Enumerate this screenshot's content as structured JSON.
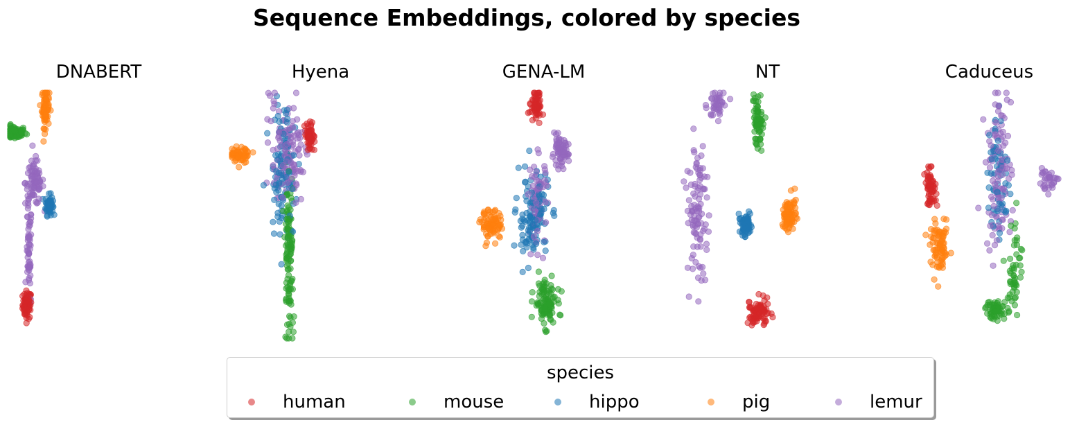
{
  "title": "Sequence Embeddings, colored by species",
  "legend": {
    "title": "species",
    "placement": "bottom-center"
  },
  "colors": {
    "human": "#d62728",
    "mouse": "#2ca02c",
    "hippo": "#1f77b4",
    "pig": "#ff7f0e",
    "lemur": "#9467bd"
  },
  "chart_data": [
    {
      "type": "scatter",
      "title": "DNABERT",
      "axes_visible": false,
      "grid": false,
      "series": [
        {
          "name": "human",
          "color": "#d62728",
          "clusters": [
            {
              "center": [
                1.1,
                1.4
              ],
              "spread": [
                0.12,
                0.28
              ],
              "count": 70
            }
          ]
        },
        {
          "name": "mouse",
          "color": "#2ca02c",
          "clusters": [
            {
              "center": [
                0.4,
                8.3
              ],
              "spread": [
                0.32,
                0.13
              ],
              "count": 90
            }
          ]
        },
        {
          "name": "hippo",
          "color": "#1f77b4",
          "clusters": [
            {
              "center": [
                2.3,
                5.4
              ],
              "spread": [
                0.1,
                0.2
              ],
              "count": 60
            }
          ]
        },
        {
          "name": "pig",
          "color": "#ff7f0e",
          "clusters": [
            {
              "center": [
                2.1,
                9.3
              ],
              "spread": [
                0.1,
                0.4
              ],
              "count": 70
            }
          ]
        },
        {
          "name": "lemur",
          "color": "#9467bd",
          "clusters": [
            {
              "center": [
                1.5,
                6.3
              ],
              "spread": [
                0.25,
                0.45
              ],
              "count": 80
            },
            {
              "center": [
                1.2,
                3.3
              ],
              "spread": [
                0.07,
                1.1
              ],
              "count": 60
            }
          ]
        }
      ]
    },
    {
      "type": "scatter",
      "title": "Hyena",
      "axes_visible": false,
      "grid": false,
      "series": [
        {
          "name": "human",
          "color": "#d62728",
          "clusters": [
            {
              "center": [
                4.4,
                8.1
              ],
              "spread": [
                0.13,
                0.25
              ],
              "count": 60
            }
          ]
        },
        {
          "name": "mouse",
          "color": "#2ca02c",
          "clusters": [
            {
              "center": [
                3.3,
                3.3
              ],
              "spread": [
                0.12,
                1.5
              ],
              "count": 120
            }
          ]
        },
        {
          "name": "hippo",
          "color": "#1f77b4",
          "clusters": [
            {
              "center": [
                3.0,
                6.7
              ],
              "spread": [
                0.4,
                1.3
              ],
              "count": 110
            }
          ]
        },
        {
          "name": "pig",
          "color": "#ff7f0e",
          "clusters": [
            {
              "center": [
                0.6,
                7.4
              ],
              "spread": [
                0.3,
                0.15
              ],
              "count": 60
            }
          ]
        },
        {
          "name": "lemur",
          "color": "#9467bd",
          "clusters": [
            {
              "center": [
                3.2,
                7.5
              ],
              "spread": [
                0.45,
                1.1
              ],
              "count": 120
            }
          ]
        }
      ]
    },
    {
      "type": "scatter",
      "title": "GENA-LM",
      "axes_visible": false,
      "grid": false,
      "series": [
        {
          "name": "human",
          "color": "#d62728",
          "clusters": [
            {
              "center": [
                4.6,
                9.4
              ],
              "spread": [
                0.15,
                0.3
              ],
              "count": 60
            }
          ]
        },
        {
          "name": "mouse",
          "color": "#2ca02c",
          "clusters": [
            {
              "center": [
                5.1,
                1.5
              ],
              "spread": [
                0.3,
                0.45
              ],
              "count": 110
            }
          ]
        },
        {
          "name": "hippo",
          "color": "#1f77b4",
          "clusters": [
            {
              "center": [
                4.4,
                4.9
              ],
              "spread": [
                0.45,
                0.9
              ],
              "count": 120
            }
          ]
        },
        {
          "name": "pig",
          "color": "#ff7f0e",
          "clusters": [
            {
              "center": [
                2.2,
                4.6
              ],
              "spread": [
                0.3,
                0.28
              ],
              "count": 80
            }
          ]
        },
        {
          "name": "lemur",
          "color": "#9467bd",
          "clusters": [
            {
              "center": [
                5.9,
                7.5
              ],
              "spread": [
                0.22,
                0.28
              ],
              "count": 70
            },
            {
              "center": [
                4.7,
                5.6
              ],
              "spread": [
                0.25,
                0.9
              ],
              "count": 70
            }
          ]
        }
      ]
    },
    {
      "type": "scatter",
      "title": "NT",
      "axes_visible": false,
      "grid": false,
      "series": [
        {
          "name": "human",
          "color": "#d62728",
          "clusters": [
            {
              "center": [
                4.5,
                1.1
              ],
              "spread": [
                0.3,
                0.28
              ],
              "count": 80
            }
          ]
        },
        {
          "name": "mouse",
          "color": "#2ca02c",
          "clusters": [
            {
              "center": [
                4.5,
                8.7
              ],
              "spread": [
                0.15,
                0.75
              ],
              "count": 70
            }
          ]
        },
        {
          "name": "hippo",
          "color": "#1f77b4",
          "clusters": [
            {
              "center": [
                3.8,
                4.6
              ],
              "spread": [
                0.18,
                0.18
              ],
              "count": 70
            }
          ]
        },
        {
          "name": "pig",
          "color": "#ff7f0e",
          "clusters": [
            {
              "center": [
                6.2,
                5.0
              ],
              "spread": [
                0.18,
                0.4
              ],
              "count": 80
            }
          ]
        },
        {
          "name": "lemur",
          "color": "#9467bd",
          "clusters": [
            {
              "center": [
                2.2,
                9.4
              ],
              "spread": [
                0.2,
                0.3
              ],
              "count": 40
            },
            {
              "center": [
                1.2,
                5.2
              ],
              "spread": [
                0.3,
                1.3
              ],
              "count": 100
            }
          ]
        }
      ]
    },
    {
      "type": "scatter",
      "title": "Caduceus",
      "axes_visible": false,
      "grid": false,
      "series": [
        {
          "name": "human",
          "color": "#d62728",
          "clusters": [
            {
              "center": [
                1.8,
                6.1
              ],
              "spread": [
                0.15,
                0.35
              ],
              "count": 60
            }
          ]
        },
        {
          "name": "mouse",
          "color": "#2ca02c",
          "clusters": [
            {
              "center": [
                5.4,
                1.2
              ],
              "spread": [
                0.3,
                0.2
              ],
              "count": 60
            },
            {
              "center": [
                6.4,
                2.9
              ],
              "spread": [
                0.2,
                1.0
              ],
              "count": 50
            }
          ]
        },
        {
          "name": "hippo",
          "color": "#1f77b4",
          "clusters": [
            {
              "center": [
                5.5,
                6.6
              ],
              "spread": [
                0.3,
                1.3
              ],
              "count": 60
            }
          ]
        },
        {
          "name": "pig",
          "color": "#ff7f0e",
          "clusters": [
            {
              "center": [
                2.3,
                3.6
              ],
              "spread": [
                0.25,
                0.5
              ],
              "count": 80
            }
          ]
        },
        {
          "name": "lemur",
          "color": "#9467bd",
          "clusters": [
            {
              "center": [
                5.5,
                6.8
              ],
              "spread": [
                0.35,
                1.6
              ],
              "count": 110
            },
            {
              "center": [
                8.2,
                6.4
              ],
              "spread": [
                0.3,
                0.2
              ],
              "count": 35
            }
          ]
        }
      ]
    }
  ]
}
